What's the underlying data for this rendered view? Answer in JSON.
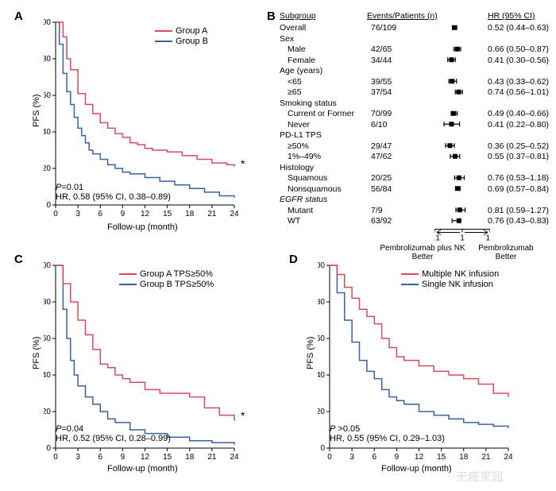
{
  "colors": {
    "groupA": "#d94b5a",
    "groupB": "#3b5fa8",
    "axis": "#000000",
    "bg": "#ffffff"
  },
  "panelA": {
    "label": "A",
    "ylabel": "PFS (%)",
    "xlabel": "Follow-up (month)",
    "xticks": [
      0,
      3,
      6,
      9,
      12,
      15,
      18,
      21,
      24
    ],
    "yticks": [
      0,
      20,
      40,
      60,
      80,
      100
    ],
    "legend": [
      {
        "label": "Group A",
        "color": "#d94b5a"
      },
      {
        "label": "Group B",
        "color": "#3b5fa8"
      }
    ],
    "stats_p_label": "P",
    "stats_p": "=0.01",
    "stats_hr": "HR, 0.58 (95% CI, 0.38–0.89)",
    "seriesA": [
      [
        0,
        100
      ],
      [
        1,
        92
      ],
      [
        1.5,
        80
      ],
      [
        2,
        74
      ],
      [
        3,
        65
      ],
      [
        3,
        61
      ],
      [
        4,
        55
      ],
      [
        5,
        50
      ],
      [
        6,
        45
      ],
      [
        7,
        42
      ],
      [
        8,
        39
      ],
      [
        9,
        37
      ],
      [
        10,
        34
      ],
      [
        11,
        33
      ],
      [
        12,
        31
      ],
      [
        13,
        30
      ],
      [
        15,
        29
      ],
      [
        17,
        27
      ],
      [
        19,
        25
      ],
      [
        21,
        23
      ],
      [
        23,
        22
      ],
      [
        24,
        21
      ]
    ],
    "seriesB": [
      [
        0,
        100
      ],
      [
        0.5,
        88
      ],
      [
        1,
        72
      ],
      [
        1.5,
        62
      ],
      [
        2,
        55
      ],
      [
        2.5,
        48
      ],
      [
        3,
        42
      ],
      [
        3.5,
        38
      ],
      [
        4,
        34
      ],
      [
        4.5,
        30
      ],
      [
        5,
        28
      ],
      [
        6,
        25
      ],
      [
        7,
        22
      ],
      [
        8,
        20
      ],
      [
        9,
        18
      ],
      [
        10,
        17
      ],
      [
        12,
        15
      ],
      [
        14,
        13
      ],
      [
        16,
        11
      ],
      [
        18,
        9
      ],
      [
        20,
        7
      ],
      [
        22,
        5
      ],
      [
        24,
        4
      ]
    ]
  },
  "panelB": {
    "label": "B",
    "headers": {
      "subgroup": "Subgroup",
      "events": "Events/Patients (n)",
      "hr": "HR (95% CI)"
    },
    "xticks": [
      "0.1",
      "1",
      "10"
    ],
    "left_label": "Pembrolizumab plus NK\nBetter",
    "right_label": "Pembrolizumab\nBetter",
    "rows": [
      {
        "label": "Overall",
        "indent": 0,
        "events": "76/109",
        "hr": "0.52 (0.44–0.63)",
        "pt": 0.52,
        "lo": 0.44,
        "hi": 0.63
      },
      {
        "label": "Sex",
        "indent": 0,
        "head": true
      },
      {
        "label": "Male",
        "indent": 1,
        "events": "42/65",
        "hr": "0.66 (0.50–0.87)",
        "pt": 0.66,
        "lo": 0.5,
        "hi": 0.87
      },
      {
        "label": "Female",
        "indent": 1,
        "events": "34/44",
        "hr": "0.41 (0.30–0.56)",
        "pt": 0.41,
        "lo": 0.3,
        "hi": 0.56
      },
      {
        "label": "Age (years)",
        "indent": 0,
        "head": true
      },
      {
        "label": "<65",
        "indent": 1,
        "events": "39/55",
        "hr": "0.43 (0.33–0.62)",
        "pt": 0.43,
        "lo": 0.33,
        "hi": 0.62
      },
      {
        "label": "≥65",
        "indent": 1,
        "events": "37/54",
        "hr": "0.74 (0.56–1.01)",
        "pt": 0.74,
        "lo": 0.56,
        "hi": 1.01
      },
      {
        "label": "Smoking status",
        "indent": 0,
        "head": true
      },
      {
        "label": "Current or Former",
        "indent": 1,
        "events": "70/99",
        "hr": "0.49 (0.40–0.66)",
        "pt": 0.49,
        "lo": 0.4,
        "hi": 0.66
      },
      {
        "label": "Never",
        "indent": 1,
        "events": "6/10",
        "hr": "0.41 (0.22–0.80)",
        "pt": 0.41,
        "lo": 0.22,
        "hi": 0.8
      },
      {
        "label": "PD-L1 TPS",
        "indent": 0,
        "head": true
      },
      {
        "label": "≥50%",
        "indent": 1,
        "events": "29/47",
        "hr": "0.36 (0.25–0.52)",
        "pt": 0.36,
        "lo": 0.25,
        "hi": 0.52
      },
      {
        "label": "1%–49%",
        "indent": 1,
        "events": "47/62",
        "hr": "0.55 (0.37–0.81)",
        "pt": 0.55,
        "lo": 0.37,
        "hi": 0.81
      },
      {
        "label": "Histology",
        "indent": 0,
        "head": true
      },
      {
        "label": "Squamous",
        "indent": 1,
        "events": "20/25",
        "hr": "0.76 (0.53–1.18)",
        "pt": 0.76,
        "lo": 0.53,
        "hi": 1.18
      },
      {
        "label": "Nonsquamous",
        "indent": 1,
        "events": "56/84",
        "hr": "0.69 (0.57–0.84)",
        "pt": 0.69,
        "lo": 0.57,
        "hi": 0.84
      },
      {
        "label": "EGFR status",
        "indent": 0,
        "head": true,
        "italic": true
      },
      {
        "label": "Mutant",
        "indent": 1,
        "events": "7/9",
        "hr": "0.81 (0.59–1.27)",
        "pt": 0.81,
        "lo": 0.59,
        "hi": 1.27
      },
      {
        "label": "WT",
        "indent": 1,
        "events": "63/92",
        "hr": "0.76 (0.43–0.83)",
        "pt": 0.76,
        "lo": 0.43,
        "hi": 0.83
      }
    ]
  },
  "panelC": {
    "label": "C",
    "ylabel": "PFS (%)",
    "xlabel": "Follow-up (month)",
    "xticks": [
      0,
      3,
      6,
      9,
      12,
      15,
      18,
      21,
      24
    ],
    "yticks": [
      0,
      20,
      40,
      60,
      80,
      100
    ],
    "legend": [
      {
        "label": "Group A TPS≥50%",
        "color": "#d94b5a"
      },
      {
        "label": "Group B TPS≥50%",
        "color": "#3b5fa8"
      }
    ],
    "stats_p_label": "P",
    "stats_p": "=0.04",
    "stats_hr": "HR, 0.52 (95% CI, 0.28–0.99)",
    "seriesA": [
      [
        0,
        100
      ],
      [
        1,
        90
      ],
      [
        2,
        80
      ],
      [
        3,
        70
      ],
      [
        4,
        62
      ],
      [
        5,
        54
      ],
      [
        6,
        46
      ],
      [
        7,
        44
      ],
      [
        8,
        40
      ],
      [
        9,
        38
      ],
      [
        10,
        36
      ],
      [
        12,
        32
      ],
      [
        14,
        30
      ],
      [
        16,
        30
      ],
      [
        18,
        28
      ],
      [
        20,
        22
      ],
      [
        22,
        18
      ],
      [
        24,
        15
      ]
    ],
    "seriesB": [
      [
        0,
        100
      ],
      [
        1,
        76
      ],
      [
        1.5,
        60
      ],
      [
        2,
        48
      ],
      [
        2.5,
        40
      ],
      [
        3,
        34
      ],
      [
        4,
        28
      ],
      [
        5,
        24
      ],
      [
        6,
        20
      ],
      [
        7,
        16
      ],
      [
        8,
        14
      ],
      [
        10,
        10
      ],
      [
        12,
        8
      ],
      [
        15,
        6
      ],
      [
        18,
        4
      ],
      [
        21,
        3
      ],
      [
        24,
        2
      ]
    ]
  },
  "panelD": {
    "label": "D",
    "ylabel": "PFS (%)",
    "xlabel": "Follow-up (month)",
    "xticks": [
      0,
      3,
      6,
      9,
      12,
      15,
      18,
      21,
      24
    ],
    "yticks": [
      0,
      20,
      40,
      60,
      80,
      100
    ],
    "legend": [
      {
        "label": "Multiple NK infusion",
        "color": "#d94b5a"
      },
      {
        "label": "Single NK infusion",
        "color": "#3b5fa8"
      }
    ],
    "stats_p_label": "P",
    "stats_p": " >0.05",
    "stats_hr": "HR, 0.55 (95% CI, 0.29–1.03)",
    "seriesA": [
      [
        0,
        100
      ],
      [
        1,
        95
      ],
      [
        2,
        88
      ],
      [
        3,
        82
      ],
      [
        4,
        76
      ],
      [
        5,
        72
      ],
      [
        6,
        68
      ],
      [
        7,
        60
      ],
      [
        8,
        55
      ],
      [
        9,
        50
      ],
      [
        10,
        48
      ],
      [
        12,
        45
      ],
      [
        14,
        42
      ],
      [
        16,
        40
      ],
      [
        18,
        38
      ],
      [
        20,
        35
      ],
      [
        22,
        30
      ],
      [
        24,
        28
      ]
    ],
    "seriesB": [
      [
        0,
        100
      ],
      [
        1,
        85
      ],
      [
        2,
        70
      ],
      [
        3,
        58
      ],
      [
        4,
        48
      ],
      [
        5,
        42
      ],
      [
        6,
        38
      ],
      [
        7,
        32
      ],
      [
        8,
        28
      ],
      [
        9,
        26
      ],
      [
        10,
        24
      ],
      [
        12,
        20
      ],
      [
        14,
        18
      ],
      [
        16,
        16
      ],
      [
        18,
        14
      ],
      [
        20,
        13
      ],
      [
        22,
        12
      ],
      [
        24,
        11
      ]
    ]
  },
  "watermark": "无癌家园"
}
